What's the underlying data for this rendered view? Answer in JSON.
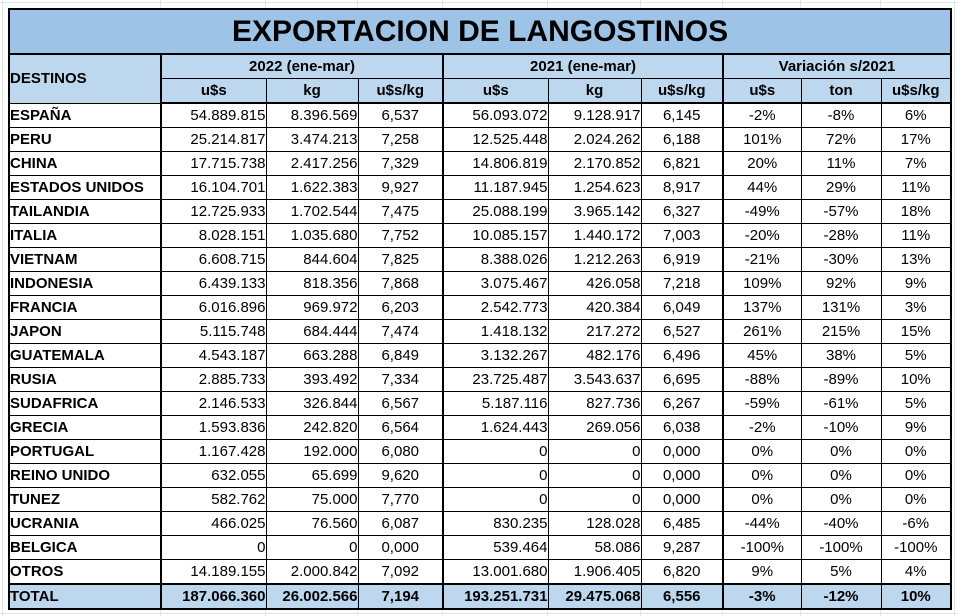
{
  "title": "EXPORTACION DE LANGOSTINOS",
  "colors": {
    "title_bg": "#9DC3E6",
    "header_bg": "#BDD7EE",
    "total_bg": "#BDD7EE",
    "cell_border": "#000000",
    "sheet_gridline": "#DFE3EA"
  },
  "table": {
    "destinos_header": "DESTINOS",
    "groups": [
      {
        "label": "2022 (ene-mar)",
        "subcols": [
          "u$s",
          "kg",
          "u$s/kg"
        ]
      },
      {
        "label": "2021 (ene-mar)",
        "subcols": [
          "u$s",
          "kg",
          "u$s/kg"
        ]
      },
      {
        "label": "Variación s/2021",
        "subcols": [
          "u$s",
          "ton",
          "u$s/kg"
        ]
      }
    ],
    "rows": [
      [
        "ESPAÑA",
        "54.889.815",
        "8.396.569",
        "6,537",
        "56.093.072",
        "9.128.917",
        "6,145",
        "-2%",
        "-8%",
        "6%"
      ],
      [
        "PERU",
        "25.214.817",
        "3.474.213",
        "7,258",
        "12.525.448",
        "2.024.262",
        "6,188",
        "101%",
        "72%",
        "17%"
      ],
      [
        "CHINA",
        "17.715.738",
        "2.417.256",
        "7,329",
        "14.806.819",
        "2.170.852",
        "6,821",
        "20%",
        "11%",
        "7%"
      ],
      [
        "ESTADOS UNIDOS",
        "16.104.701",
        "1.622.383",
        "9,927",
        "11.187.945",
        "1.254.623",
        "8,917",
        "44%",
        "29%",
        "11%"
      ],
      [
        "TAILANDIA",
        "12.725.933",
        "1.702.544",
        "7,475",
        "25.088.199",
        "3.965.142",
        "6,327",
        "-49%",
        "-57%",
        "18%"
      ],
      [
        "ITALIA",
        "8.028.151",
        "1.035.680",
        "7,752",
        "10.085.157",
        "1.440.172",
        "7,003",
        "-20%",
        "-28%",
        "11%"
      ],
      [
        "VIETNAM",
        "6.608.715",
        "844.604",
        "7,825",
        "8.388.026",
        "1.212.263",
        "6,919",
        "-21%",
        "-30%",
        "13%"
      ],
      [
        "INDONESIA",
        "6.439.133",
        "818.356",
        "7,868",
        "3.075.467",
        "426.058",
        "7,218",
        "109%",
        "92%",
        "9%"
      ],
      [
        "FRANCIA",
        "6.016.896",
        "969.972",
        "6,203",
        "2.542.773",
        "420.384",
        "6,049",
        "137%",
        "131%",
        "3%"
      ],
      [
        "JAPON",
        "5.115.748",
        "684.444",
        "7,474",
        "1.418.132",
        "217.272",
        "6,527",
        "261%",
        "215%",
        "15%"
      ],
      [
        "GUATEMALA",
        "4.543.187",
        "663.288",
        "6,849",
        "3.132.267",
        "482.176",
        "6,496",
        "45%",
        "38%",
        "5%"
      ],
      [
        "RUSIA",
        "2.885.733",
        "393.492",
        "7,334",
        "23.725.487",
        "3.543.637",
        "6,695",
        "-88%",
        "-89%",
        "10%"
      ],
      [
        "SUDAFRICA",
        "2.146.533",
        "326.844",
        "6,567",
        "5.187.116",
        "827.736",
        "6,267",
        "-59%",
        "-61%",
        "5%"
      ],
      [
        "GRECIA",
        "1.593.836",
        "242.820",
        "6,564",
        "1.624.443",
        "269.056",
        "6,038",
        "-2%",
        "-10%",
        "9%"
      ],
      [
        "PORTUGAL",
        "1.167.428",
        "192.000",
        "6,080",
        "0",
        "0",
        "0,000",
        "0%",
        "0%",
        "0%"
      ],
      [
        "REINO UNIDO",
        "632.055",
        "65.699",
        "9,620",
        "0",
        "0",
        "0,000",
        "0%",
        "0%",
        "0%"
      ],
      [
        "TUNEZ",
        "582.762",
        "75.000",
        "7,770",
        "0",
        "0",
        "0,000",
        "0%",
        "0%",
        "0%"
      ],
      [
        "UCRANIA",
        "466.025",
        "76.560",
        "6,087",
        "830.235",
        "128.028",
        "6,485",
        "-44%",
        "-40%",
        "-6%"
      ],
      [
        "BELGICA",
        "0",
        "0",
        "0,000",
        "539.464",
        "58.086",
        "9,287",
        "-100%",
        "-100%",
        "-100%"
      ],
      [
        "OTROS",
        "14.189.155",
        "2.000.842",
        "7,092",
        "13.001.680",
        "1.906.405",
        "6,820",
        "9%",
        "5%",
        "4%"
      ]
    ],
    "total": [
      "TOTAL",
      "187.066.360",
      "26.002.566",
      "7,194",
      "193.251.731",
      "29.475.068",
      "6,556",
      "-3%",
      "-12%",
      "10%"
    ]
  }
}
